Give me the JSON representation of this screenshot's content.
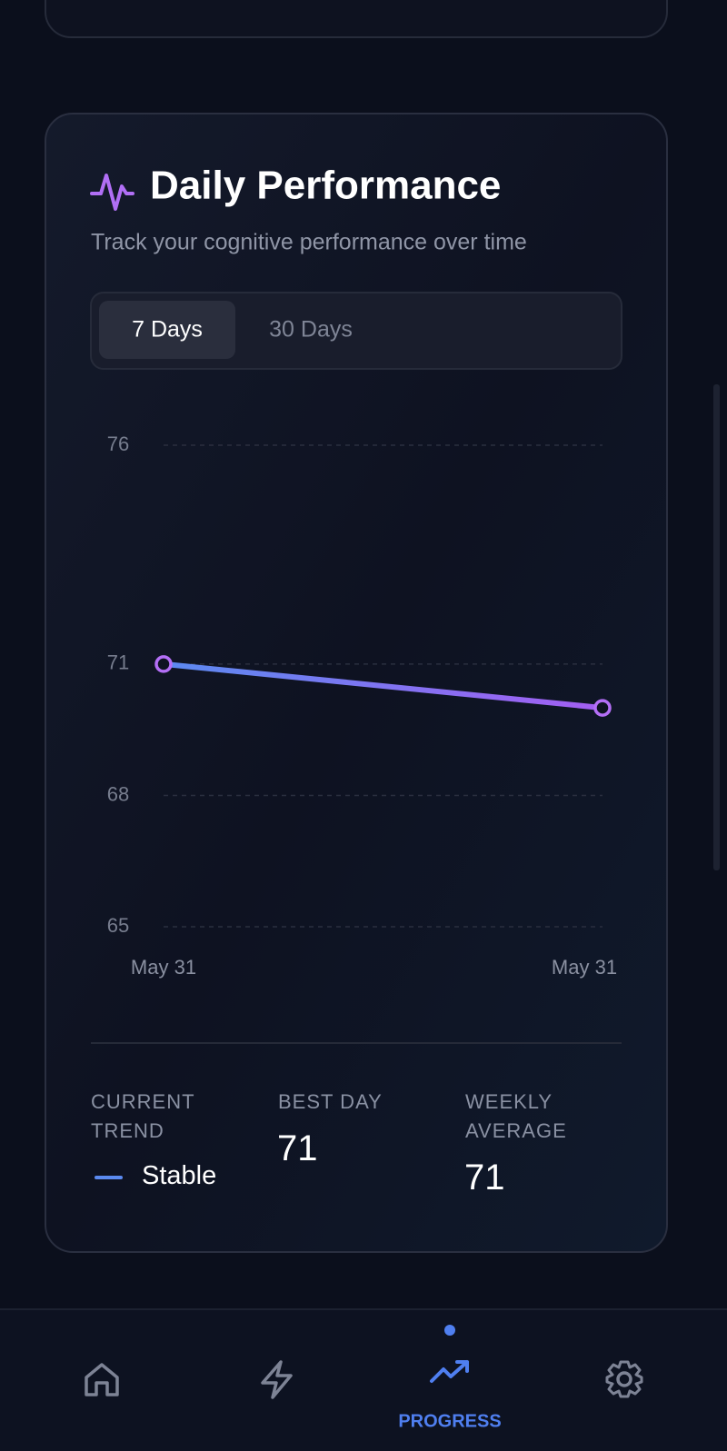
{
  "header": {
    "title": "Daily Performance",
    "subtitle": "Track your cognitive performance over time"
  },
  "tabs": [
    "7 Days",
    "30 Days"
  ],
  "chart_data": {
    "type": "line",
    "categories": [
      "May 31",
      "May 31"
    ],
    "values": [
      71,
      70
    ],
    "gradient": [
      "#5b8af0",
      "#a45ef2"
    ],
    "marker_color": "#b46ff6",
    "ylim": [
      65,
      76
    ],
    "yticks": [
      65,
      68,
      71,
      76
    ],
    "grid": true
  },
  "stats": {
    "current_trend": {
      "label": "CURRENT TREND",
      "value": "Stable"
    },
    "best_day": {
      "label": "BEST DAY",
      "value": 71
    },
    "weekly_average": {
      "label": "WEEKLY AVERAGE",
      "value": 71
    }
  },
  "nav": {
    "active": "PROGRESS"
  }
}
